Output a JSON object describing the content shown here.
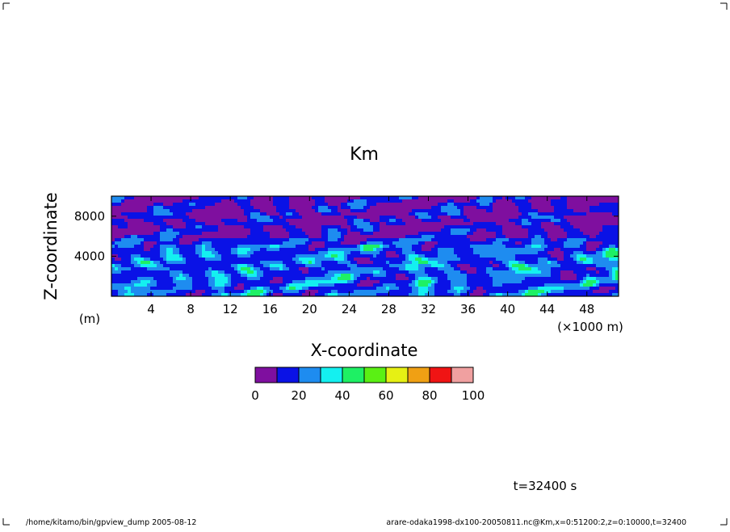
{
  "chart_data": {
    "type": "heatmap",
    "title": "Km",
    "xlabel": "X-coordinate",
    "ylabel": "Z-coordinate",
    "x_unit": "(×1000 m)",
    "y_unit": "(m)",
    "xlim": [
      0,
      51.2
    ],
    "ylim": [
      0,
      10000
    ],
    "x_ticks": [
      "4",
      "8",
      "12",
      "16",
      "20",
      "24",
      "28",
      "32",
      "36",
      "40",
      "44",
      "48"
    ],
    "y_ticks": [
      "4000",
      "8000"
    ],
    "colorbar": {
      "levels": [
        0,
        10,
        20,
        30,
        40,
        50,
        60,
        70,
        80,
        90,
        100
      ],
      "labels": [
        "0",
        "20",
        "40",
        "60",
        "80",
        "100"
      ],
      "colors": [
        "#7f0f9f",
        "#0a12e6",
        "#1e8cf0",
        "#14f0f0",
        "#1ef064",
        "#5af014",
        "#e6f014",
        "#f0a014",
        "#f01414",
        "#f0a0a0"
      ]
    }
  },
  "time_label": "t=32400 s",
  "footer_left": "/home/kitamo/bin/gpview_dump  2005-08-12",
  "footer_right": "arare-odaka1998-dx100-20050811.nc@Km,x=0:51200:2,z=0:10000,t=32400"
}
